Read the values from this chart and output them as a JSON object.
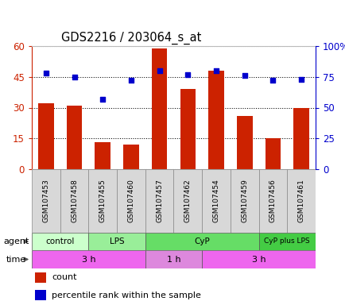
{
  "title": "GDS2216 / 203064_s_at",
  "samples": [
    "GSM107453",
    "GSM107458",
    "GSM107455",
    "GSM107460",
    "GSM107457",
    "GSM107462",
    "GSM107454",
    "GSM107459",
    "GSM107456",
    "GSM107461"
  ],
  "count_values": [
    32,
    31,
    13,
    12,
    59,
    39,
    48,
    26,
    15,
    30
  ],
  "percentile_values": [
    78,
    75,
    57,
    72,
    80,
    77,
    80,
    76,
    72,
    73
  ],
  "bar_color": "#cc2200",
  "dot_color": "#0000cc",
  "left_yticks": [
    0,
    15,
    30,
    45,
    60
  ],
  "left_yticklabels": [
    "0",
    "15",
    "30",
    "45",
    "60"
  ],
  "right_yticks": [
    0,
    25,
    50,
    75,
    100
  ],
  "right_yticklabels": [
    "0",
    "25",
    "50",
    "75",
    "100%"
  ],
  "agent_groups": [
    {
      "label": "control",
      "start": 0,
      "end": 2,
      "color": "#ccffcc"
    },
    {
      "label": "LPS",
      "start": 2,
      "end": 4,
      "color": "#99ee99"
    },
    {
      "label": "CyP",
      "start": 4,
      "end": 8,
      "color": "#66dd66"
    },
    {
      "label": "CyP plus LPS",
      "start": 8,
      "end": 10,
      "color": "#44cc44"
    }
  ],
  "time_groups": [
    {
      "label": "3 h",
      "start": 0,
      "end": 4,
      "color": "#ee66ee"
    },
    {
      "label": "1 h",
      "start": 4,
      "end": 6,
      "color": "#dd88dd"
    },
    {
      "label": "3 h",
      "start": 6,
      "end": 10,
      "color": "#ee66ee"
    }
  ],
  "sample_bg": "#d8d8d8",
  "sample_edge": "#888888",
  "agent_label": "agent",
  "time_label": "time",
  "legend_items": [
    {
      "color": "#cc2200",
      "label": "count"
    },
    {
      "color": "#0000cc",
      "label": "percentile rank within the sample"
    }
  ]
}
